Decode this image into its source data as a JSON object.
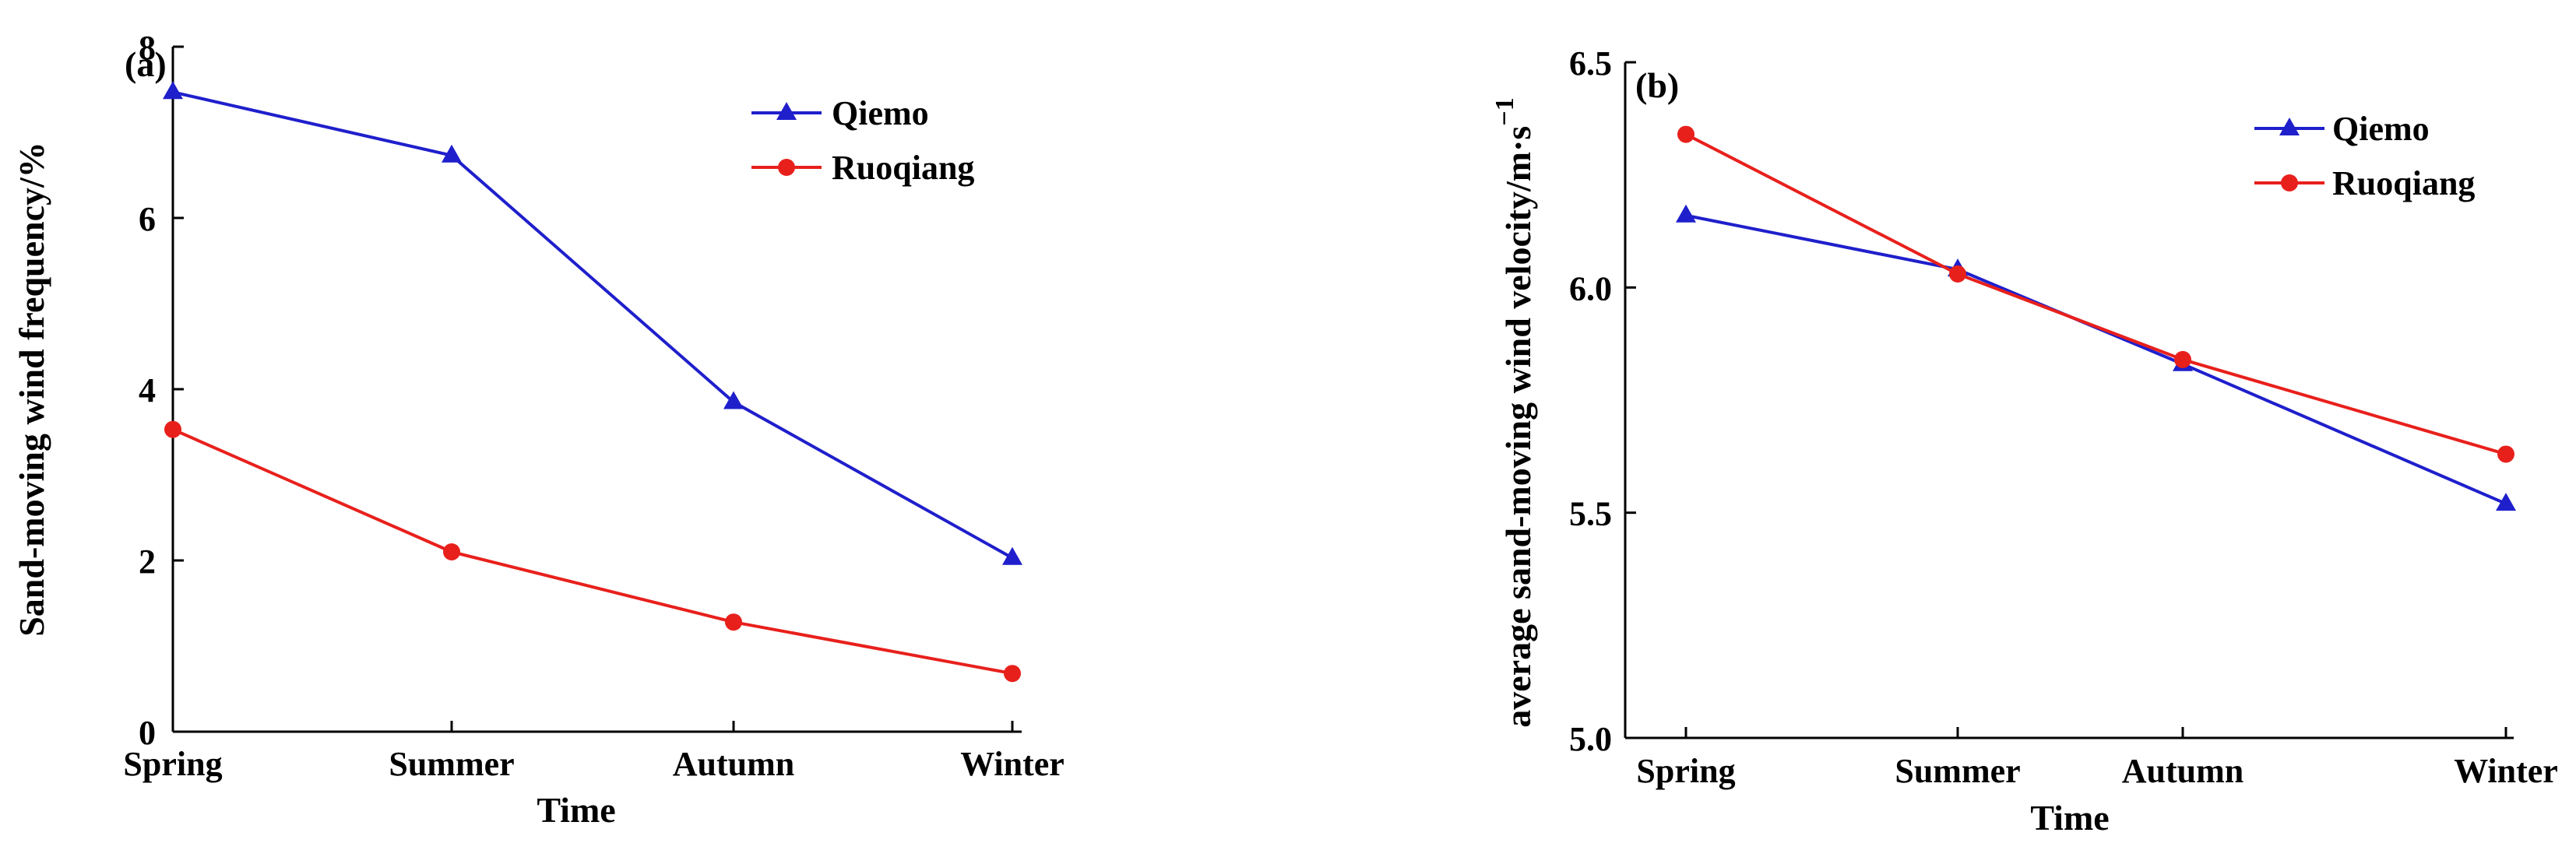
{
  "chart_data": [
    {
      "type": "line",
      "panel_label": "(a)",
      "categories": [
        "Spring",
        "Summer",
        "Autumn",
        "Winter"
      ],
      "series": [
        {
          "name": "Qiemo",
          "values": [
            7.47,
            6.73,
            3.85,
            2.03
          ],
          "color": "#1f1fcc",
          "marker": "triangle"
        },
        {
          "name": "Ruoqiang",
          "values": [
            3.53,
            2.1,
            1.28,
            0.68
          ],
          "color": "#e8201c",
          "marker": "circle"
        }
      ],
      "xlabel": "Time",
      "ylabel": "Sand-moving wind frequency/%",
      "ylim": [
        0,
        8
      ],
      "yticks": [
        0,
        2,
        4,
        6,
        8
      ],
      "ytick_labels": [
        "0",
        "2",
        "4",
        "6",
        "8"
      ],
      "legend": "top-right"
    },
    {
      "type": "line",
      "panel_label": "(b)",
      "categories": [
        "Spring",
        "Summer",
        "Autumn",
        "Winter"
      ],
      "series": [
        {
          "name": "Qiemo",
          "values": [
            6.16,
            6.04,
            5.83,
            5.52
          ],
          "color": "#1f1fcc",
          "marker": "triangle"
        },
        {
          "name": "Ruoqiang",
          "values": [
            6.34,
            6.03,
            5.84,
            5.63
          ],
          "color": "#e8201c",
          "marker": "circle"
        }
      ],
      "xlabel": "Time",
      "ylabel_main": "average sand-moving wind velocity/m·s",
      "ylabel_sup": "−1",
      "ylim": [
        5.0,
        6.5
      ],
      "yticks": [
        5.0,
        5.5,
        6.0,
        6.5
      ],
      "ytick_labels": [
        "5.0",
        "5.5",
        "6.0",
        "6.5"
      ],
      "legend": "top-right"
    }
  ]
}
